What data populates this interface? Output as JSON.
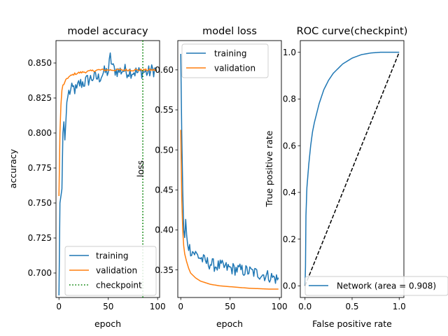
{
  "colors": {
    "training": "#1f77b4",
    "validation": "#ff7f0e",
    "checkpoint": "#008000",
    "diagonal": "#000000"
  },
  "chart_data": [
    {
      "type": "line",
      "title": "model accuracy",
      "xlabel": "epoch",
      "ylabel": "accuracy",
      "xlim": [
        -3,
        102
      ],
      "ylim": [
        0.6825,
        0.866
      ],
      "xticks": [
        0,
        50,
        100
      ],
      "yticks": [
        0.7,
        0.725,
        0.75,
        0.775,
        0.8,
        0.825,
        0.85
      ],
      "ytick_labels": [
        "0.700",
        "0.725",
        "0.750",
        "0.775",
        "0.800",
        "0.825",
        "0.850"
      ],
      "legend_position": "lower-right",
      "series": [
        {
          "name": "training",
          "color": "#1f77b4",
          "anchors": [
            [
              0,
              0.684
            ],
            [
              1,
              0.75
            ],
            [
              2,
              0.755
            ],
            [
              3,
              0.76
            ],
            [
              4,
              0.8
            ],
            [
              5,
              0.808
            ],
            [
              6,
              0.795
            ],
            [
              7,
              0.808
            ],
            [
              8,
              0.822
            ],
            [
              9,
              0.826
            ],
            [
              10,
              0.829
            ],
            [
              12,
              0.83
            ],
            [
              15,
              0.832
            ],
            [
              18,
              0.83
            ],
            [
              20,
              0.835
            ],
            [
              25,
              0.836
            ],
            [
              30,
              0.838
            ],
            [
              35,
              0.84
            ],
            [
              40,
              0.839
            ],
            [
              45,
              0.843
            ],
            [
              50,
              0.844
            ],
            [
              52,
              0.854
            ],
            [
              55,
              0.846
            ],
            [
              60,
              0.844
            ],
            [
              65,
              0.845
            ],
            [
              70,
              0.844
            ],
            [
              75,
              0.844
            ],
            [
              80,
              0.843
            ],
            [
              85,
              0.844
            ],
            [
              90,
              0.843
            ],
            [
              95,
              0.845
            ],
            [
              99,
              0.845
            ]
          ],
          "noise": 0.005,
          "noise_start": 10
        },
        {
          "name": "validation",
          "color": "#ff7f0e",
          "anchors": [
            [
              0,
              0.755
            ],
            [
              1,
              0.8
            ],
            [
              2,
              0.82
            ],
            [
              3,
              0.83
            ],
            [
              4,
              0.834
            ],
            [
              6,
              0.836
            ],
            [
              8,
              0.839
            ],
            [
              10,
              0.84
            ],
            [
              15,
              0.842
            ],
            [
              20,
              0.843
            ],
            [
              30,
              0.844
            ],
            [
              40,
              0.845
            ],
            [
              50,
              0.845
            ],
            [
              60,
              0.845
            ],
            [
              70,
              0.845
            ],
            [
              80,
              0.845
            ],
            [
              90,
              0.845
            ],
            [
              99,
              0.845
            ]
          ],
          "noise": 0.0008,
          "noise_start": 3
        },
        {
          "name": "checkpoint",
          "color": "#008000",
          "style": "dotted",
          "vertical_at": 85
        }
      ]
    },
    {
      "type": "line",
      "title": "model loss",
      "xlabel": "epoch",
      "ylabel": "loss",
      "xlim": [
        -3,
        102
      ],
      "ylim": [
        0.3155,
        0.6366
      ],
      "xticks": [
        0,
        50,
        100
      ],
      "yticks": [
        0.35,
        0.4,
        0.45,
        0.5,
        0.55,
        0.6
      ],
      "ytick_labels": [
        "0.35",
        "0.40",
        "0.45",
        "0.50",
        "0.55",
        "0.60"
      ],
      "legend_position": "top-right",
      "series": [
        {
          "name": "training",
          "color": "#1f77b4",
          "anchors": [
            [
              0,
              0.62
            ],
            [
              1,
              0.52
            ],
            [
              2,
              0.45
            ],
            [
              3,
              0.4
            ],
            [
              4,
              0.39
            ],
            [
              5,
              0.41
            ],
            [
              6,
              0.39
            ],
            [
              8,
              0.38
            ],
            [
              10,
              0.375
            ],
            [
              15,
              0.37
            ],
            [
              20,
              0.365
            ],
            [
              25,
              0.36
            ],
            [
              30,
              0.358
            ],
            [
              35,
              0.355
            ],
            [
              40,
              0.355
            ],
            [
              45,
              0.353
            ],
            [
              50,
              0.352
            ],
            [
              60,
              0.35
            ],
            [
              70,
              0.348
            ],
            [
              80,
              0.345
            ],
            [
              90,
              0.342
            ],
            [
              99,
              0.338
            ]
          ],
          "noise": 0.008,
          "noise_start": 4
        },
        {
          "name": "validation",
          "color": "#ff7f0e",
          "anchors": [
            [
              0,
              0.525
            ],
            [
              1,
              0.44
            ],
            [
              2,
              0.4
            ],
            [
              3,
              0.38
            ],
            [
              4,
              0.37
            ],
            [
              6,
              0.36
            ],
            [
              8,
              0.352
            ],
            [
              10,
              0.346
            ],
            [
              15,
              0.34
            ],
            [
              20,
              0.336
            ],
            [
              30,
              0.332
            ],
            [
              40,
              0.33
            ],
            [
              50,
              0.329
            ],
            [
              60,
              0.328
            ],
            [
              70,
              0.327
            ],
            [
              80,
              0.3265
            ],
            [
              90,
              0.326
            ],
            [
              99,
              0.326
            ]
          ],
          "noise": 0.0,
          "noise_start": 0
        }
      ]
    },
    {
      "type": "line",
      "title": "ROC curve(checkpint)",
      "xlabel": "False positive rate",
      "ylabel": "True positive rate",
      "xlim": [
        -0.05,
        1.05
      ],
      "ylim": [
        -0.05,
        1.05
      ],
      "xticks": [
        0,
        0.5,
        1
      ],
      "xtick_labels": [
        "0.0",
        "0.5",
        "1.0"
      ],
      "yticks": [
        0,
        0.2,
        0.4,
        0.6,
        0.8,
        1.0
      ],
      "ytick_labels": [
        "0.0",
        "0.2",
        "0.4",
        "0.6",
        "0.8",
        "1.0"
      ],
      "legend_position": "lower-right",
      "series": [
        {
          "name": "Network (area = 0.908)",
          "color": "#1f77b4",
          "anchors": [
            [
              0,
              0
            ],
            [
              0.005,
              0.08
            ],
            [
              0.01,
              0.3
            ],
            [
              0.02,
              0.42
            ],
            [
              0.04,
              0.52
            ],
            [
              0.06,
              0.6
            ],
            [
              0.08,
              0.66
            ],
            [
              0.1,
              0.7
            ],
            [
              0.15,
              0.78
            ],
            [
              0.2,
              0.84
            ],
            [
              0.25,
              0.88
            ],
            [
              0.3,
              0.91
            ],
            [
              0.4,
              0.95
            ],
            [
              0.5,
              0.975
            ],
            [
              0.6,
              0.99
            ],
            [
              0.7,
              0.997
            ],
            [
              0.8,
              1.0
            ],
            [
              1.0,
              1.0
            ]
          ]
        },
        {
          "name": "",
          "color": "#000000",
          "style": "dashed",
          "anchors": [
            [
              0,
              0
            ],
            [
              1,
              1
            ]
          ]
        }
      ]
    }
  ]
}
